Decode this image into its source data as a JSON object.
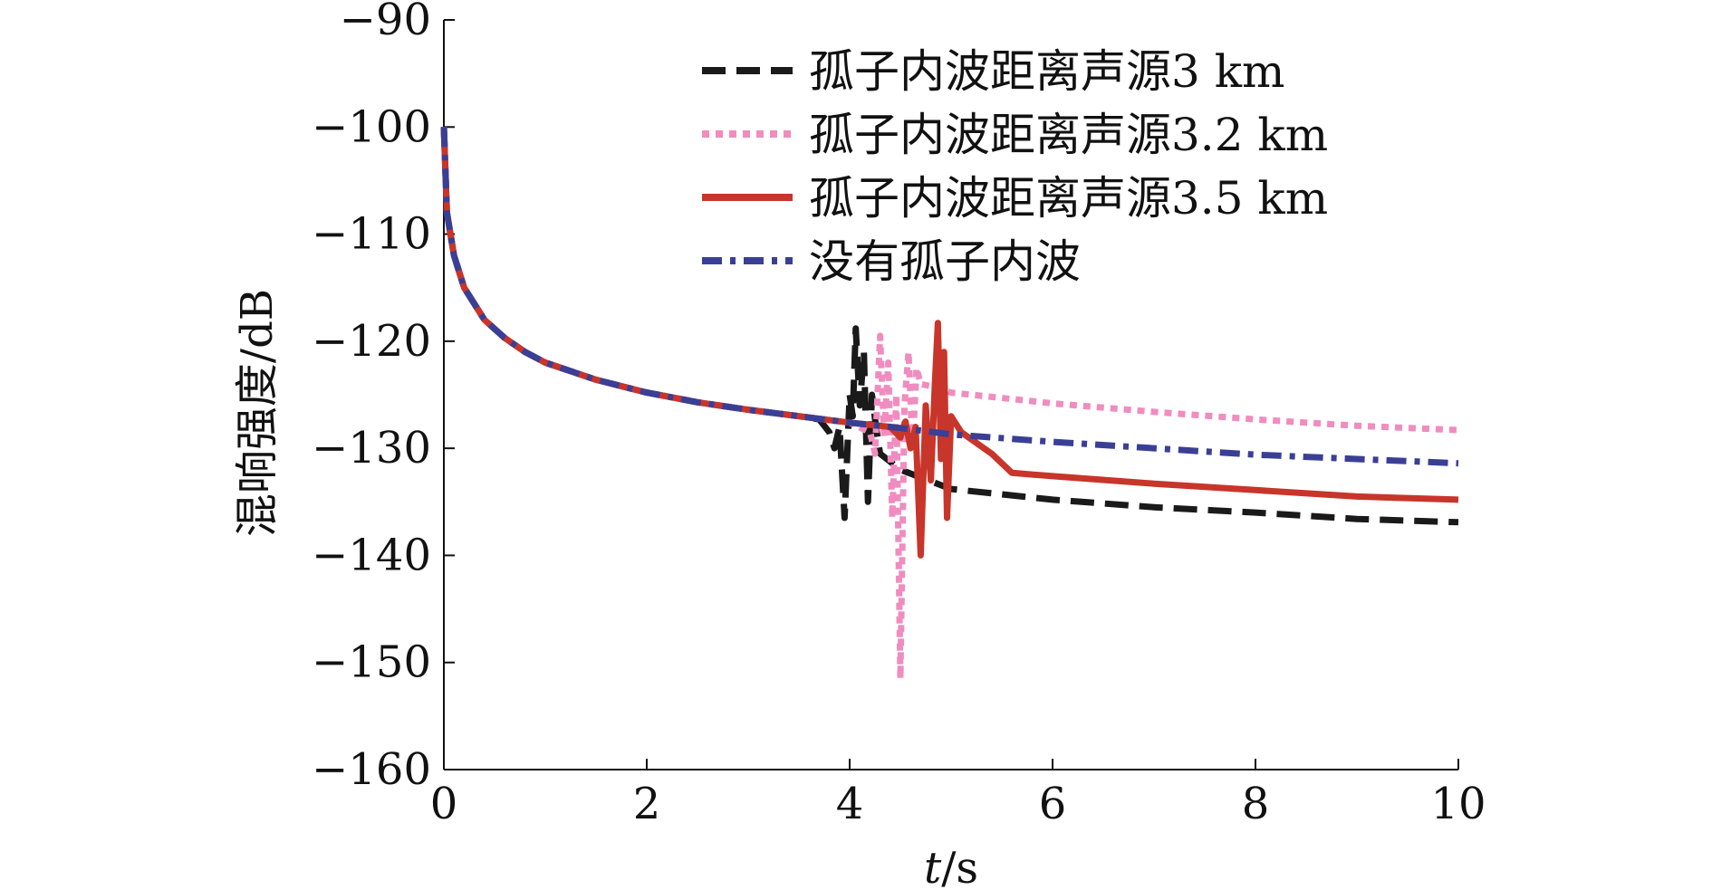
{
  "chart_data": {
    "type": "line",
    "xlabel_italic": "t",
    "xlabel_rest": "/s",
    "ylabel": "混响强度/dB",
    "xlim": [
      0,
      10
    ],
    "ylim": [
      -160,
      -90
    ],
    "x_ticks": [
      0,
      2,
      4,
      6,
      8,
      10
    ],
    "x_tick_labels": [
      "0",
      "2",
      "4",
      "6",
      "8",
      "10"
    ],
    "y_ticks": [
      -90,
      -100,
      -110,
      -120,
      -130,
      -140,
      -150,
      -160
    ],
    "y_tick_labels": [
      "−90",
      "−100",
      "−110",
      "−120",
      "−130",
      "−140",
      "−150",
      "−160"
    ],
    "grid": false,
    "legend_position": "top-right",
    "series": [
      {
        "name": "孤子内波距离声源3 km",
        "color": "#1a1a1a",
        "style": "dashed",
        "points": [
          [
            0,
            -100
          ],
          [
            0.03,
            -108
          ],
          [
            0.1,
            -112
          ],
          [
            0.2,
            -115
          ],
          [
            0.4,
            -118
          ],
          [
            0.6,
            -119.7
          ],
          [
            0.8,
            -121
          ],
          [
            1,
            -122
          ],
          [
            1.5,
            -123.6
          ],
          [
            2,
            -124.8
          ],
          [
            2.5,
            -125.7
          ],
          [
            3,
            -126.4
          ],
          [
            3.5,
            -127
          ],
          [
            3.7,
            -127.3
          ],
          [
            3.8,
            -128.5
          ],
          [
            3.85,
            -130
          ],
          [
            3.9,
            -128
          ],
          [
            3.95,
            -136.5
          ],
          [
            4.0,
            -125
          ],
          [
            4.03,
            -127
          ],
          [
            4.06,
            -118.8
          ],
          [
            4.1,
            -126
          ],
          [
            4.14,
            -121
          ],
          [
            4.18,
            -135
          ],
          [
            4.22,
            -125
          ],
          [
            4.26,
            -128
          ],
          [
            4.3,
            -130.5
          ],
          [
            4.5,
            -132
          ],
          [
            5,
            -133.8
          ],
          [
            6,
            -134.8
          ],
          [
            7,
            -135.5
          ],
          [
            8,
            -136
          ],
          [
            9,
            -136.6
          ],
          [
            10,
            -136.9
          ]
        ]
      },
      {
        "name": "孤子内波距离声源3.2 km",
        "color": "#f08cc0",
        "style": "dotted",
        "points": [
          [
            0,
            -100
          ],
          [
            0.03,
            -108
          ],
          [
            0.1,
            -112
          ],
          [
            0.2,
            -115
          ],
          [
            0.4,
            -118
          ],
          [
            0.6,
            -119.7
          ],
          [
            0.8,
            -121
          ],
          [
            1,
            -122
          ],
          [
            1.5,
            -123.6
          ],
          [
            2,
            -124.8
          ],
          [
            2.5,
            -125.7
          ],
          [
            3,
            -126.4
          ],
          [
            3.5,
            -127
          ],
          [
            4.0,
            -127.6
          ],
          [
            4.2,
            -128.5
          ],
          [
            4.25,
            -130.5
          ],
          [
            4.3,
            -119.5
          ],
          [
            4.34,
            -129
          ],
          [
            4.38,
            -122
          ],
          [
            4.42,
            -136.5
          ],
          [
            4.46,
            -125
          ],
          [
            4.5,
            -151.5
          ],
          [
            4.54,
            -126
          ],
          [
            4.58,
            -121
          ],
          [
            4.62,
            -130
          ],
          [
            4.66,
            -122.5
          ],
          [
            4.7,
            -124
          ],
          [
            4.8,
            -124.2
          ],
          [
            5.0,
            -124.8
          ],
          [
            6,
            -125.8
          ],
          [
            7,
            -126.6
          ],
          [
            8,
            -127.3
          ],
          [
            9,
            -127.9
          ],
          [
            10,
            -128.3
          ]
        ]
      },
      {
        "name": "孤子内波距离声源3.5 km",
        "color": "#c8352a",
        "style": "solid",
        "points": [
          [
            0,
            -100
          ],
          [
            0.03,
            -108
          ],
          [
            0.1,
            -112
          ],
          [
            0.2,
            -115
          ],
          [
            0.4,
            -118
          ],
          [
            0.6,
            -119.7
          ],
          [
            0.8,
            -121
          ],
          [
            1,
            -122
          ],
          [
            1.5,
            -123.6
          ],
          [
            2,
            -124.8
          ],
          [
            2.5,
            -125.7
          ],
          [
            3,
            -126.4
          ],
          [
            3.5,
            -127
          ],
          [
            4.0,
            -127.6
          ],
          [
            4.4,
            -128
          ],
          [
            4.5,
            -129
          ],
          [
            4.55,
            -127.5
          ],
          [
            4.6,
            -130
          ],
          [
            4.65,
            -128
          ],
          [
            4.7,
            -140
          ],
          [
            4.75,
            -126
          ],
          [
            4.8,
            -133
          ],
          [
            4.84,
            -124
          ],
          [
            4.87,
            -118.3
          ],
          [
            4.9,
            -131
          ],
          [
            4.93,
            -121
          ],
          [
            4.96,
            -136.5
          ],
          [
            5.0,
            -127
          ],
          [
            5.1,
            -128.5
          ],
          [
            5.4,
            -130.5
          ],
          [
            5.6,
            -132.3
          ],
          [
            6,
            -132.6
          ],
          [
            7,
            -133.3
          ],
          [
            8,
            -133.9
          ],
          [
            9,
            -134.5
          ],
          [
            10,
            -134.8
          ]
        ]
      },
      {
        "name": "没有孤子内波",
        "color": "#3a3f96",
        "style": "dashdot",
        "points": [
          [
            0,
            -100
          ],
          [
            0.03,
            -108
          ],
          [
            0.1,
            -112
          ],
          [
            0.2,
            -115
          ],
          [
            0.4,
            -118
          ],
          [
            0.6,
            -119.7
          ],
          [
            0.8,
            -121
          ],
          [
            1,
            -122
          ],
          [
            1.5,
            -123.6
          ],
          [
            2,
            -124.8
          ],
          [
            2.5,
            -125.7
          ],
          [
            3,
            -126.4
          ],
          [
            3.5,
            -127
          ],
          [
            4,
            -127.6
          ],
          [
            4.5,
            -128.1
          ],
          [
            5,
            -128.7
          ],
          [
            6,
            -129.4
          ],
          [
            7,
            -130
          ],
          [
            8,
            -130.6
          ],
          [
            9,
            -131
          ],
          [
            10,
            -131.4
          ]
        ]
      }
    ]
  }
}
